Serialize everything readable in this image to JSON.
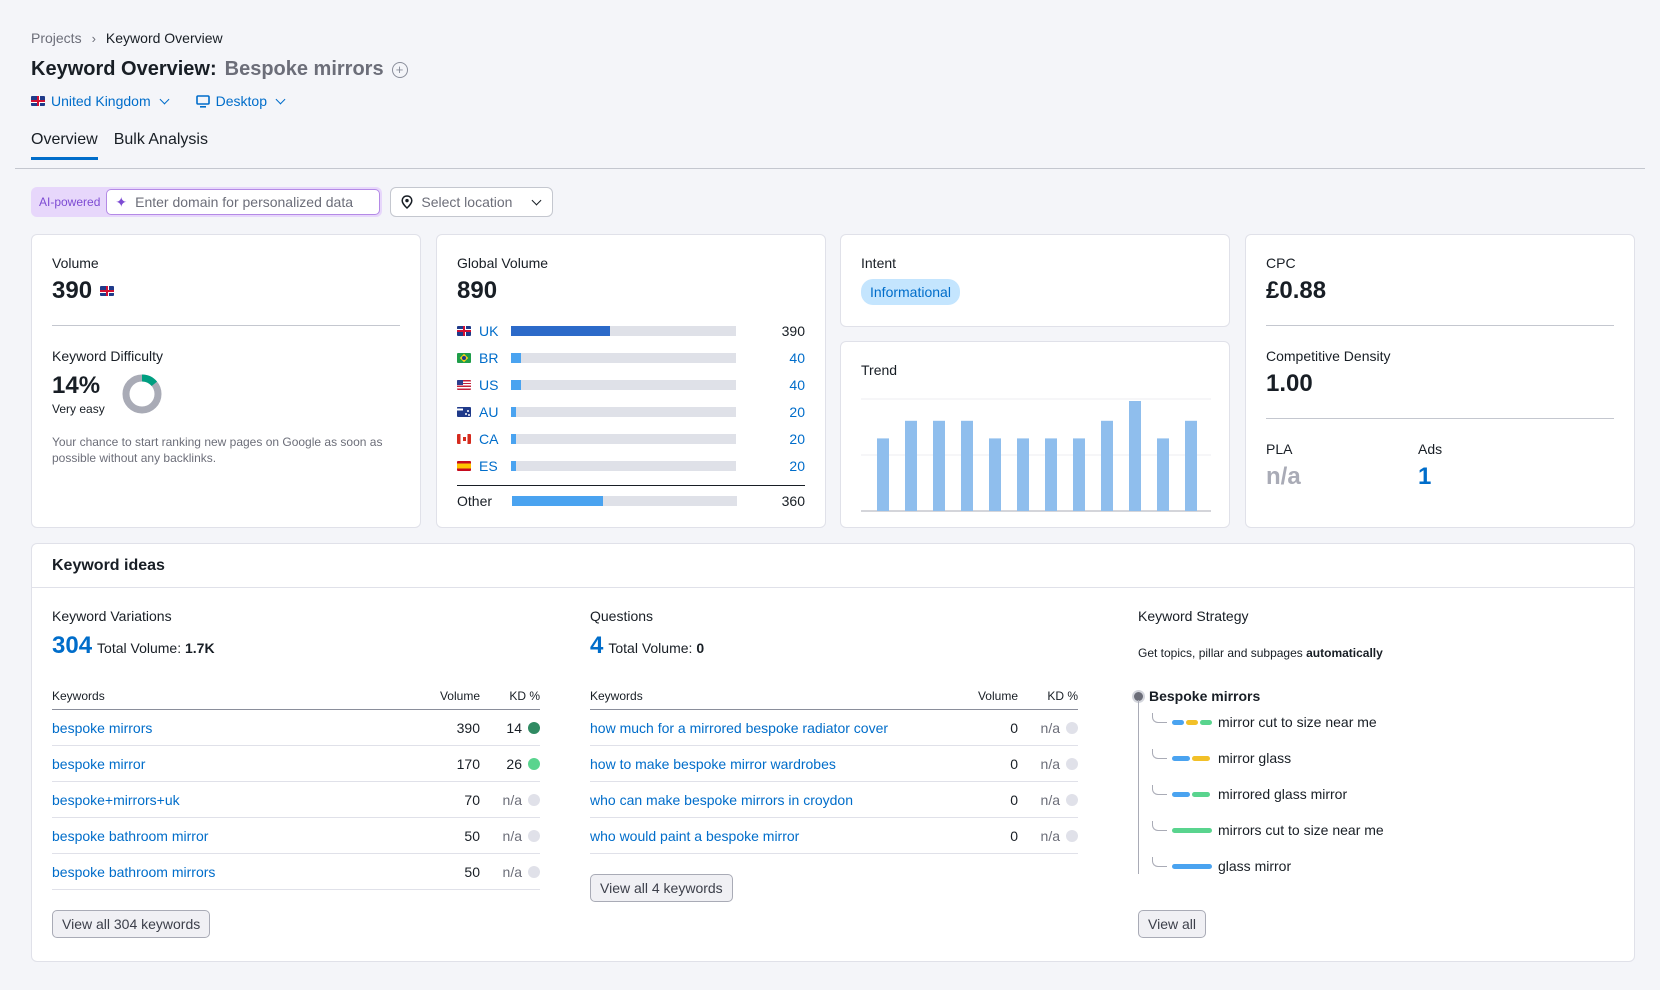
{
  "breadcrumb": {
    "projects": "Projects",
    "current": "Keyword Overview"
  },
  "header": {
    "title": "Keyword Overview:",
    "keyword": "Bespoke mirrors",
    "add_icon": "plus-circle-icon"
  },
  "database": {
    "country": "United Kingdom",
    "device": "Desktop"
  },
  "tabs": [
    {
      "label": "Overview",
      "active": true
    },
    {
      "label": "Bulk Analysis",
      "active": false
    }
  ],
  "filters": {
    "ai_label": "AI-powered",
    "domain_placeholder": "Enter domain for personalized data",
    "location_placeholder": "Select location"
  },
  "volume": {
    "label": "Volume",
    "value": "390"
  },
  "kd": {
    "label": "Keyword Difficulty",
    "value": "14%",
    "percent": 14,
    "level": "Very easy",
    "help": "Your chance to start ranking new pages on Google as soon as possible without any backlinks.",
    "color": "#009f81"
  },
  "global_volume": {
    "label": "Global Volume",
    "value": "890",
    "countries": [
      {
        "code": "UK",
        "flag": "uk",
        "value": "390",
        "share": 0.44
      },
      {
        "code": "BR",
        "flag": "br",
        "value": "40",
        "share": 0.045
      },
      {
        "code": "US",
        "flag": "us",
        "value": "40",
        "share": 0.045
      },
      {
        "code": "AU",
        "flag": "au",
        "value": "20",
        "share": 0.02
      },
      {
        "code": "CA",
        "flag": "ca",
        "value": "20",
        "share": 0.02
      },
      {
        "code": "ES",
        "flag": "es",
        "value": "20",
        "share": 0.02
      }
    ],
    "other": {
      "label": "Other",
      "value": "360",
      "share": 0.405
    }
  },
  "intent": {
    "label": "Intent",
    "badge": "Informational"
  },
  "trend": {
    "label": "Trend",
    "values": [
      0.66,
      0.82,
      0.82,
      0.82,
      0.66,
      0.66,
      0.66,
      0.66,
      0.82,
      1.0,
      0.66,
      0.82
    ],
    "color": "#8fbeed"
  },
  "cpc": {
    "label": "CPC",
    "value": "£0.88"
  },
  "competitive_density": {
    "label": "Competitive Density",
    "value": "1.00"
  },
  "pla": {
    "label": "PLA",
    "value": "n/a"
  },
  "ads": {
    "label": "Ads",
    "value": "1"
  },
  "keyword_ideas": {
    "title": "Keyword ideas",
    "variations": {
      "label": "Keyword Variations",
      "count": "304",
      "total_label": "Total Volume:",
      "total": "1.7K",
      "headers": {
        "keyword": "Keywords",
        "volume": "Volume",
        "kd": "KD %"
      },
      "rows": [
        {
          "keyword": "bespoke mirrors",
          "volume": "390",
          "kd": "14",
          "dot": "#2f8a62"
        },
        {
          "keyword": "bespoke mirror",
          "volume": "170",
          "kd": "26",
          "dot": "#59d48e"
        },
        {
          "keyword": "bespoke+mirrors+uk",
          "volume": "70",
          "kd": "n/a",
          "dot": "#e0e1e9"
        },
        {
          "keyword": "bespoke bathroom mirror",
          "volume": "50",
          "kd": "n/a",
          "dot": "#e0e1e9"
        },
        {
          "keyword": "bespoke bathroom mirrors",
          "volume": "50",
          "kd": "n/a",
          "dot": "#e0e1e9"
        }
      ],
      "button": "View all 304 keywords"
    },
    "questions": {
      "label": "Questions",
      "count": "4",
      "total_label": "Total Volume:",
      "total": "0",
      "headers": {
        "keyword": "Keywords",
        "volume": "Volume",
        "kd": "KD %"
      },
      "rows": [
        {
          "keyword": "how much for a mirrored bespoke radiator cover",
          "volume": "0",
          "kd": "n/a",
          "dot": "#e0e1e9"
        },
        {
          "keyword": "how to make bespoke mirror wardrobes",
          "volume": "0",
          "kd": "n/a",
          "dot": "#e0e1e9"
        },
        {
          "keyword": "who can make bespoke mirrors in croydon",
          "volume": "0",
          "kd": "n/a",
          "dot": "#e0e1e9"
        },
        {
          "keyword": "who would paint a bespoke mirror",
          "volume": "0",
          "kd": "n/a",
          "dot": "#e0e1e9"
        }
      ],
      "button": "View all 4 keywords"
    },
    "strategy": {
      "label": "Keyword Strategy",
      "sub_prefix": "Get topics, pillar and subpages",
      "sub_bold": "automatically",
      "root": "Bespoke mirrors",
      "items": [
        {
          "label": "mirror cut to size near me",
          "bars": [
            "#4aa3f0",
            "#f2c028",
            "#59d48e"
          ]
        },
        {
          "label": "mirror glass",
          "bars": [
            "#4aa3f0",
            "#f2c028"
          ]
        },
        {
          "label": "mirrored glass mirror",
          "bars": [
            "#4aa3f0",
            "#59d48e"
          ]
        },
        {
          "label": "mirrors cut to size near me",
          "bars": [
            "#59d48e"
          ]
        },
        {
          "label": "glass mirror",
          "bars": [
            "#4aa3f0"
          ]
        }
      ],
      "button": "View all"
    }
  }
}
